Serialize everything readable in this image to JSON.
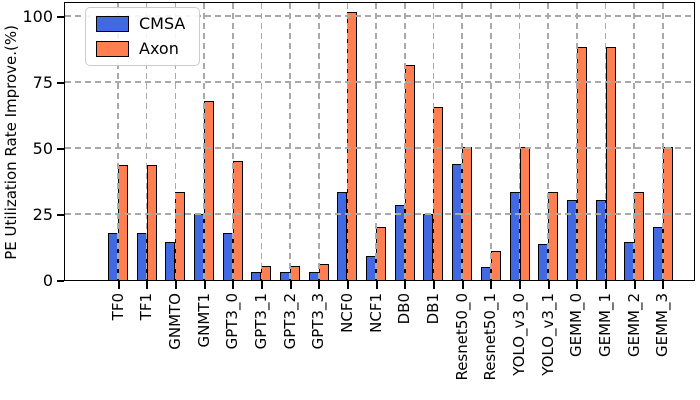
{
  "chart_data": {
    "type": "bar",
    "title": "",
    "xlabel": "",
    "ylabel": "PE Utilization Rate Improve.(%)",
    "ylim": [
      0,
      105
    ],
    "yticks": [
      0,
      25,
      50,
      75,
      100
    ],
    "grid": "dashed, drawn above bars",
    "legend_position": "upper-left",
    "categories": [
      "TF0",
      "TF1",
      "GNMTO",
      "GNMT1",
      "GPT3_0",
      "GPT3_1",
      "GPT3_2",
      "GPT3_3",
      "NCF0",
      "NCF1",
      "DB0",
      "DB1",
      "Resnet50_0",
      "Resnet50_1",
      "YOLO_v3_0",
      "YOLO_v3_1",
      "GEMM_0",
      "GEMM_1",
      "GEMM_2",
      "GEMM_3"
    ],
    "series": [
      {
        "name": "CMSA",
        "color": "#4169E1",
        "values": [
          18,
          18,
          14.5,
          25,
          18,
          3,
          3,
          3,
          33.5,
          9,
          28.5,
          25,
          44,
          5,
          33.5,
          13.5,
          30.5,
          30.5,
          14.5,
          20
        ]
      },
      {
        "name": "Axon",
        "color": "#FF7F50",
        "values": [
          43.5,
          43.5,
          33.5,
          68,
          45,
          5.5,
          5.5,
          6,
          101.5,
          20,
          81.5,
          65.5,
          50.5,
          11,
          50.5,
          33.5,
          88.5,
          88.5,
          33.5,
          50.5
        ]
      }
    ]
  },
  "colors": {
    "bar_edge": "#000000",
    "gridline": "#a9a9a9",
    "axis": "#000000",
    "legend_border": "#cccccc",
    "background": "#ffffff"
  }
}
